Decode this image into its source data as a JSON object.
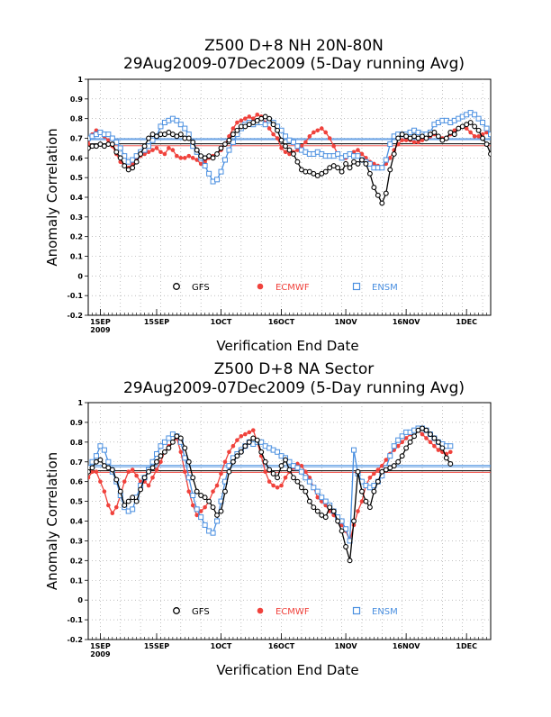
{
  "colors": {
    "GFS": "#000000",
    "ECMWF": "#f0423c",
    "ENSM": "#4a8fe0"
  },
  "chart_data": [
    {
      "type": "line",
      "title": "Z500 D+8 NH 20N-80N",
      "subtitle": "29Aug2009-07Dec2009 (5-Day running Avg)",
      "xlabel": "Verification End Date",
      "ylabel": "Anomaly Correlation",
      "ylim": [
        -0.2,
        1.0
      ],
      "yticks": [
        "-0.2",
        "-0.1",
        "0",
        "0.1",
        "0.2",
        "0.3",
        "0.4",
        "0.5",
        "0.6",
        "0.7",
        "0.8",
        "0.9",
        "1"
      ],
      "xlim": [
        "2009-08-29",
        "2009-12-07"
      ],
      "xticks": [
        {
          "date": "2009-09-01",
          "label": "1SEP",
          "sub": "2009"
        },
        {
          "date": "2009-09-15",
          "label": "15SEP",
          "sub": ""
        },
        {
          "date": "2009-10-01",
          "label": "1OCT",
          "sub": ""
        },
        {
          "date": "2009-10-16",
          "label": "16OCT",
          "sub": ""
        },
        {
          "date": "2009-11-01",
          "label": "1NOV",
          "sub": ""
        },
        {
          "date": "2009-11-16",
          "label": "16NOV",
          "sub": ""
        },
        {
          "date": "2009-12-01",
          "label": "1DEC",
          "sub": ""
        }
      ],
      "grid": true,
      "legend_position": "bottom",
      "start_date": "2009-08-29",
      "series": [
        {
          "name": "GFS",
          "means": [
            0.672
          ],
          "values": [
            0.65,
            0.66,
            0.66,
            0.67,
            0.66,
            0.67,
            0.67,
            0.63,
            0.6,
            0.56,
            0.54,
            0.55,
            0.58,
            0.62,
            0.66,
            0.7,
            0.72,
            0.71,
            0.72,
            0.72,
            0.73,
            0.72,
            0.71,
            0.72,
            0.7,
            0.7,
            0.68,
            0.64,
            0.61,
            0.6,
            0.61,
            0.6,
            0.62,
            0.65,
            0.67,
            0.69,
            0.72,
            0.74,
            0.76,
            0.76,
            0.77,
            0.78,
            0.79,
            0.8,
            0.81,
            0.8,
            0.77,
            0.74,
            0.69,
            0.66,
            0.64,
            0.62,
            0.58,
            0.54,
            0.53,
            0.53,
            0.52,
            0.51,
            0.52,
            0.53,
            0.55,
            0.56,
            0.55,
            0.53,
            0.57,
            0.55,
            0.58,
            0.57,
            0.59,
            0.57,
            0.52,
            0.45,
            0.41,
            0.37,
            0.42,
            0.54,
            0.62,
            0.7,
            0.72,
            0.71,
            0.7,
            0.71,
            0.7,
            0.71,
            0.7,
            0.72,
            0.73,
            0.71,
            0.69,
            0.7,
            0.73,
            0.72,
            0.75,
            0.76,
            0.77,
            0.78,
            0.76,
            0.74,
            0.7,
            0.67,
            0.62
          ]
        },
        {
          "name": "ECMWF",
          "means": [
            0.662
          ],
          "values": [
            0.67,
            0.72,
            0.74,
            0.73,
            0.71,
            0.69,
            0.66,
            0.62,
            0.58,
            0.56,
            0.55,
            0.57,
            0.59,
            0.61,
            0.62,
            0.63,
            0.64,
            0.65,
            0.63,
            0.62,
            0.65,
            0.64,
            0.61,
            0.6,
            0.6,
            0.61,
            0.6,
            0.59,
            0.57,
            0.58,
            0.6,
            0.61,
            0.62,
            0.64,
            0.67,
            0.71,
            0.75,
            0.78,
            0.79,
            0.8,
            0.81,
            0.8,
            0.82,
            0.81,
            0.78,
            0.75,
            0.72,
            0.7,
            0.65,
            0.63,
            0.62,
            0.63,
            0.64,
            0.66,
            0.68,
            0.71,
            0.73,
            0.74,
            0.75,
            0.73,
            0.7,
            0.66,
            0.62,
            0.6,
            0.6,
            0.62,
            0.63,
            0.64,
            0.62,
            0.6,
            0.58,
            0.57,
            0.56,
            0.55,
            0.57,
            0.6,
            0.64,
            0.67,
            0.69,
            0.69,
            0.69,
            0.68,
            0.68,
            0.69,
            0.7,
            0.71,
            0.72,
            0.71,
            0.7,
            0.7,
            0.72,
            0.74,
            0.75,
            0.76,
            0.75,
            0.73,
            0.71,
            0.71,
            0.72,
            0.73,
            0.72
          ]
        },
        {
          "name": "ENSM",
          "means": [
            0.693,
            0.698
          ],
          "values": [
            0.7,
            0.71,
            0.72,
            0.73,
            0.72,
            0.72,
            0.7,
            0.68,
            0.65,
            0.61,
            0.58,
            0.59,
            0.61,
            0.63,
            0.64,
            0.66,
            0.69,
            0.71,
            0.76,
            0.78,
            0.79,
            0.8,
            0.79,
            0.77,
            0.75,
            0.72,
            0.66,
            0.63,
            0.6,
            0.56,
            0.52,
            0.48,
            0.49,
            0.53,
            0.59,
            0.64,
            0.68,
            0.72,
            0.75,
            0.77,
            0.78,
            0.77,
            0.78,
            0.78,
            0.77,
            0.79,
            0.78,
            0.76,
            0.74,
            0.71,
            0.69,
            0.68,
            0.66,
            0.64,
            0.63,
            0.62,
            0.62,
            0.63,
            0.62,
            0.61,
            0.61,
            0.61,
            0.62,
            0.6,
            0.61,
            0.62,
            0.61,
            0.61,
            0.59,
            0.58,
            0.57,
            0.55,
            0.55,
            0.55,
            0.59,
            0.67,
            0.71,
            0.72,
            0.72,
            0.72,
            0.73,
            0.74,
            0.73,
            0.72,
            0.72,
            0.73,
            0.77,
            0.78,
            0.79,
            0.79,
            0.78,
            0.79,
            0.8,
            0.81,
            0.82,
            0.83,
            0.82,
            0.8,
            0.78,
            0.75,
            0.72
          ]
        }
      ]
    },
    {
      "type": "line",
      "title": "Z500 D+8 NA Sector",
      "subtitle": "29Aug2009-07Dec2009 (5-Day running Avg)",
      "xlabel": "Verification End Date",
      "ylabel": "Anomaly Correlation",
      "ylim": [
        -0.2,
        1.0
      ],
      "yticks": [
        "-0.2",
        "-0.1",
        "0",
        "0.1",
        "0.2",
        "0.3",
        "0.4",
        "0.5",
        "0.6",
        "0.7",
        "0.8",
        "0.9",
        "1"
      ],
      "xlim": [
        "2009-08-29",
        "2009-12-07"
      ],
      "xticks": [
        {
          "date": "2009-09-01",
          "label": "1SEP",
          "sub": "2009"
        },
        {
          "date": "2009-09-15",
          "label": "15SEP",
          "sub": ""
        },
        {
          "date": "2009-10-01",
          "label": "1OCT",
          "sub": ""
        },
        {
          "date": "2009-10-16",
          "label": "16OCT",
          "sub": ""
        },
        {
          "date": "2009-11-01",
          "label": "1NOV",
          "sub": ""
        },
        {
          "date": "2009-11-16",
          "label": "16NOV",
          "sub": ""
        },
        {
          "date": "2009-12-01",
          "label": "1DEC",
          "sub": ""
        }
      ],
      "grid": true,
      "legend_position": "bottom",
      "start_date": "2009-08-29",
      "series": [
        {
          "name": "GFS",
          "means": [
            0.655
          ],
          "values": [
            0.65,
            0.67,
            0.7,
            0.71,
            0.68,
            0.67,
            0.66,
            0.61,
            0.55,
            0.48,
            0.5,
            0.52,
            0.5,
            0.56,
            0.62,
            0.65,
            0.67,
            0.7,
            0.73,
            0.75,
            0.77,
            0.8,
            0.83,
            0.82,
            0.77,
            0.7,
            0.62,
            0.55,
            0.53,
            0.52,
            0.5,
            0.47,
            0.43,
            0.45,
            0.55,
            0.65,
            0.7,
            0.73,
            0.75,
            0.78,
            0.8,
            0.82,
            0.81,
            0.75,
            0.7,
            0.66,
            0.64,
            0.62,
            0.68,
            0.71,
            0.66,
            0.62,
            0.6,
            0.57,
            0.55,
            0.5,
            0.47,
            0.45,
            0.43,
            0.42,
            0.47,
            0.45,
            0.4,
            0.35,
            0.27,
            0.2,
            0.4,
            0.65,
            0.55,
            0.5,
            0.47,
            0.55,
            0.6,
            0.65,
            0.66,
            0.67,
            0.68,
            0.7,
            0.73,
            0.77,
            0.8,
            0.83,
            0.86,
            0.87,
            0.86,
            0.84,
            0.82,
            0.8,
            0.77,
            0.72,
            0.69
          ]
        },
        {
          "name": "ECMWF",
          "means": [
            0.647
          ],
          "values": [
            0.62,
            0.65,
            0.65,
            0.6,
            0.55,
            0.48,
            0.44,
            0.47,
            0.53,
            0.6,
            0.65,
            0.66,
            0.63,
            0.6,
            0.6,
            0.58,
            0.62,
            0.66,
            0.7,
            0.75,
            0.78,
            0.8,
            0.82,
            0.75,
            0.65,
            0.55,
            0.48,
            0.43,
            0.45,
            0.47,
            0.5,
            0.55,
            0.58,
            0.64,
            0.7,
            0.75,
            0.78,
            0.81,
            0.83,
            0.84,
            0.85,
            0.86,
            0.8,
            0.73,
            0.65,
            0.6,
            0.58,
            0.57,
            0.58,
            0.62,
            0.65,
            0.67,
            0.69,
            0.68,
            0.65,
            0.62,
            0.57,
            0.52,
            0.5,
            0.48,
            0.45,
            0.43,
            0.4,
            0.38,
            0.35,
            0.3,
            0.38,
            0.45,
            0.5,
            0.58,
            0.62,
            0.64,
            0.66,
            0.68,
            0.71,
            0.74,
            0.76,
            0.78,
            0.8,
            0.82,
            0.84,
            0.86,
            0.86,
            0.84,
            0.82,
            0.8,
            0.78,
            0.76,
            0.75,
            0.74,
            0.75
          ]
        },
        {
          "name": "ENSM",
          "means": [
            0.675,
            0.682
          ],
          "values": [
            0.67,
            0.7,
            0.73,
            0.78,
            0.76,
            0.7,
            0.65,
            0.6,
            0.53,
            0.47,
            0.45,
            0.46,
            0.52,
            0.58,
            0.62,
            0.66,
            0.7,
            0.74,
            0.78,
            0.8,
            0.82,
            0.84,
            0.83,
            0.8,
            0.72,
            0.62,
            0.53,
            0.46,
            0.42,
            0.38,
            0.35,
            0.34,
            0.4,
            0.5,
            0.6,
            0.68,
            0.72,
            0.74,
            0.76,
            0.78,
            0.8,
            0.79,
            0.8,
            0.8,
            0.78,
            0.77,
            0.76,
            0.75,
            0.73,
            0.72,
            0.7,
            0.68,
            0.67,
            0.65,
            0.62,
            0.6,
            0.57,
            0.55,
            0.52,
            0.5,
            0.48,
            0.45,
            0.42,
            0.4,
            0.36,
            0.3,
            0.76,
            0.64,
            0.6,
            0.58,
            0.57,
            0.58,
            0.6,
            0.63,
            0.67,
            0.73,
            0.78,
            0.81,
            0.83,
            0.85,
            0.85,
            0.86,
            0.87,
            0.87,
            0.86,
            0.84,
            0.82,
            0.8,
            0.79,
            0.78,
            0.78
          ]
        }
      ]
    }
  ]
}
